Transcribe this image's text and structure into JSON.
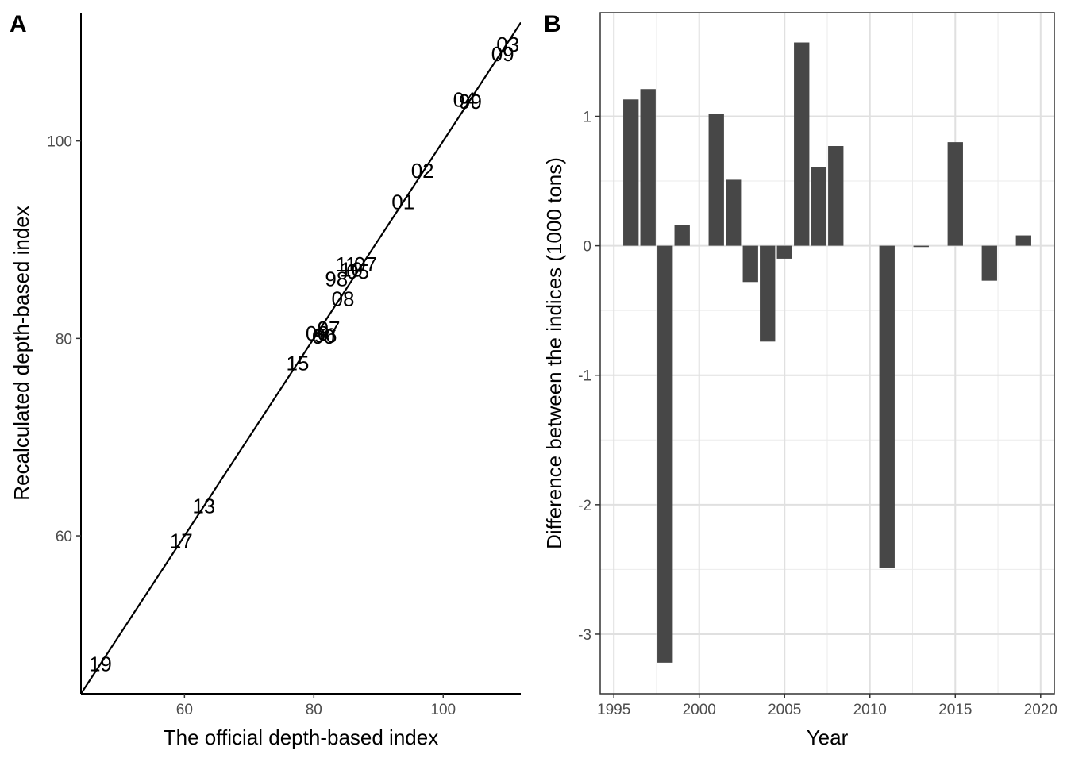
{
  "chart_data": [
    {
      "panel": "A",
      "type": "scatter",
      "xlabel": "The official depth-based index",
      "ylabel": "Recalculated depth-based index",
      "xlim": [
        44,
        112
      ],
      "ylim": [
        44,
        113
      ],
      "xticks": [
        60,
        80,
        100
      ],
      "yticks": [
        60,
        80,
        100
      ],
      "reference_line": {
        "intercept": 0,
        "slope": 1
      },
      "grid": false,
      "points": [
        {
          "label": "19",
          "x": 47.0,
          "y": 47.0
        },
        {
          "label": "17",
          "x": 59.5,
          "y": 59.5
        },
        {
          "label": "13",
          "x": 63.0,
          "y": 63.0
        },
        {
          "label": "15",
          "x": 77.5,
          "y": 77.5
        },
        {
          "label": "06",
          "x": 80.5,
          "y": 80.5
        },
        {
          "label": "97",
          "x": 82.3,
          "y": 81.0
        },
        {
          "label": "96",
          "x": 81.8,
          "y": 80.3
        },
        {
          "label": "00",
          "x": 81.5,
          "y": 80.2
        },
        {
          "label": "08",
          "x": 84.5,
          "y": 84.0
        },
        {
          "label": "98",
          "x": 83.5,
          "y": 86.0
        },
        {
          "label": "11",
          "x": 85.0,
          "y": 87.5
        },
        {
          "label": "10",
          "x": 85.8,
          "y": 87.0
        },
        {
          "label": "05",
          "x": 86.8,
          "y": 86.8
        },
        {
          "label": "07",
          "x": 88.0,
          "y": 87.5
        },
        {
          "label": "01",
          "x": 93.8,
          "y": 93.8
        },
        {
          "label": "02",
          "x": 96.8,
          "y": 97.0
        },
        {
          "label": "04",
          "x": 103.3,
          "y": 104.2
        },
        {
          "label": "99",
          "x": 104.2,
          "y": 104.0
        },
        {
          "label": "09",
          "x": 109.2,
          "y": 108.8
        },
        {
          "label": "03",
          "x": 110.0,
          "y": 109.8
        }
      ]
    },
    {
      "panel": "B",
      "type": "bar",
      "xlabel": "Year",
      "ylabel": "Difference between the indices (1000 tons)",
      "xlim": [
        1994.2,
        2020.8
      ],
      "ylim": [
        -3.46,
        1.8
      ],
      "xticks": [
        1995,
        2000,
        2005,
        2010,
        2015,
        2020
      ],
      "yticks": [
        -3,
        -2,
        -1,
        0,
        1
      ],
      "grid": true,
      "bar_color": "#474747",
      "x": [
        1996,
        1997,
        1998,
        1999,
        2001,
        2002,
        2003,
        2004,
        2005,
        2006,
        2007,
        2008,
        2011,
        2013,
        2015,
        2017,
        2019
      ],
      "values": [
        1.13,
        1.21,
        -3.22,
        0.16,
        1.02,
        0.51,
        -0.28,
        -0.74,
        -0.1,
        1.57,
        0.61,
        0.77,
        -2.49,
        -0.01,
        0.8,
        -0.27,
        0.08
      ]
    }
  ]
}
